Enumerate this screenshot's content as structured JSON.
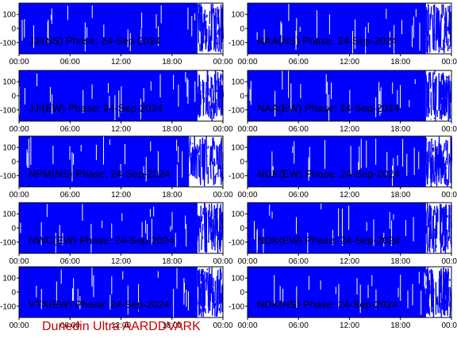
{
  "footer": "Dunedin Ultra AARDDVARK",
  "colors": {
    "trace": "#0000ff",
    "axis": "#000000",
    "footer": "#cc0000",
    "background": "#ffffff"
  },
  "chart_data": [
    {
      "type": "area",
      "title": "JJI(NS) Phase: 24-Sep-2024",
      "xlabel": "",
      "ylabel": "",
      "xticks": [
        "00:00",
        "06:00",
        "12:00",
        "18:00",
        "00:00"
      ],
      "yticks": [
        100,
        0,
        -100
      ],
      "xlim": [
        "00:00",
        "24:00"
      ],
      "ylim": [
        -180,
        180
      ],
      "grid": false,
      "fill_range": [
        -180,
        180
      ],
      "dense_until_hour": 21,
      "scattered_after_hour": 21
    },
    {
      "type": "area",
      "title": "NAA(NS) Phase: 24-Sep-2024",
      "xlabel": "",
      "ylabel": "",
      "xticks": [
        "00:00",
        "06:00",
        "12:00",
        "18:00",
        "00:00"
      ],
      "yticks": [
        100,
        0,
        -100
      ],
      "xlim": [
        "00:00",
        "24:00"
      ],
      "ylim": [
        -180,
        180
      ],
      "grid": false,
      "fill_range": [
        -180,
        180
      ],
      "dense_until_hour": 21,
      "scattered_after_hour": 21
    },
    {
      "type": "area",
      "title": "JJI(EW) Phase: 24-Sep-2024",
      "xlabel": "",
      "ylabel": "",
      "xticks": [
        "00:00",
        "06:00",
        "12:00",
        "18:00",
        "00:00"
      ],
      "yticks": [
        100,
        0,
        -100
      ],
      "xlim": [
        "00:00",
        "24:00"
      ],
      "ylim": [
        -180,
        180
      ],
      "grid": false,
      "fill_range": [
        -180,
        180
      ],
      "dense_until_hour": 21,
      "scattered_after_hour": 21
    },
    {
      "type": "area",
      "title": "NAA(EW) Phase: 24-Sep-2024",
      "xlabel": "",
      "ylabel": "",
      "xticks": [
        "00:00",
        "06:00",
        "12:00",
        "18:00",
        "00:00"
      ],
      "yticks": [
        100,
        0,
        -100
      ],
      "xlim": [
        "00:00",
        "24:00"
      ],
      "ylim": [
        -180,
        180
      ],
      "grid": false,
      "fill_range": [
        -180,
        180
      ],
      "dense_until_hour": 21,
      "scattered_after_hour": 21
    },
    {
      "type": "area",
      "title": "NPM(NS) Phase: 24-Sep-2024",
      "xlabel": "",
      "ylabel": "",
      "xticks": [
        "00:00",
        "06:00",
        "12:00",
        "18:00",
        "00:00"
      ],
      "yticks": [
        100,
        0,
        -100
      ],
      "xlim": [
        "00:00",
        "24:00"
      ],
      "ylim": [
        -180,
        180
      ],
      "grid": false,
      "fill_range": [
        -180,
        180
      ],
      "dense_until_hour": 20,
      "scattered_after_hour": 20
    },
    {
      "type": "area",
      "title": "NDK(EW) Phase: 24-Sep-2024",
      "xlabel": "",
      "ylabel": "",
      "xticks": [
        "00:00",
        "06:00",
        "12:00",
        "18:00",
        "00:00"
      ],
      "yticks": [
        100,
        0,
        -100
      ],
      "xlim": [
        "00:00",
        "24:00"
      ],
      "ylim": [
        -180,
        180
      ],
      "grid": false,
      "fill_range": [
        -180,
        180
      ],
      "dense_until_hour": 21,
      "scattered_after_hour": 21
    },
    {
      "type": "area",
      "title": "NWC(EW) Phase: 24-Sep-2024",
      "xlabel": "",
      "ylabel": "",
      "xticks": [
        "00:00",
        "06:00",
        "12:00",
        "18:00",
        "00:00"
      ],
      "yticks": [
        100,
        0,
        -100
      ],
      "xlim": [
        "00:00",
        "24:00"
      ],
      "ylim": [
        -180,
        180
      ],
      "grid": false,
      "fill_range": [
        -180,
        180
      ],
      "dense_until_hour": 21,
      "scattered_after_hour": 21
    },
    {
      "type": "area",
      "title": "NDK(EW) Phase: 24-Sep-2024",
      "xlabel": "",
      "ylabel": "",
      "xticks": [
        "00:00",
        "06:00",
        "12:00",
        "18:00",
        "00:00"
      ],
      "yticks": [
        100,
        0,
        -100
      ],
      "xlim": [
        "00:00",
        "24:00"
      ],
      "ylim": [
        -180,
        180
      ],
      "grid": false,
      "fill_range": [
        -180,
        180
      ],
      "dense_until_hour": 21,
      "scattered_after_hour": 21
    },
    {
      "type": "area",
      "title": "VTX(EW) Phase: 24-Sep-2024",
      "xlabel": "",
      "ylabel": "",
      "xticks": [
        "00:00",
        "06:00",
        "12:00",
        "18:00",
        "00:00"
      ],
      "yticks": [
        100,
        0,
        -100
      ],
      "xlim": [
        "00:00",
        "24:00"
      ],
      "ylim": [
        -180,
        180
      ],
      "grid": false,
      "fill_range": [
        -180,
        180
      ],
      "dense_until_hour": 21,
      "scattered_after_hour": 21
    },
    {
      "type": "area",
      "title": "NDK(NS) Phase: 24-Sep-2024",
      "xlabel": "",
      "ylabel": "",
      "xticks": [
        "00:00",
        "06:00",
        "12:00",
        "18:00",
        "00:00"
      ],
      "yticks": [
        100,
        0,
        -100
      ],
      "xlim": [
        "00:00",
        "24:00"
      ],
      "ylim": [
        -180,
        180
      ],
      "grid": false,
      "fill_range": [
        -180,
        180
      ],
      "dense_until_hour": 21,
      "scattered_after_hour": 21
    }
  ]
}
